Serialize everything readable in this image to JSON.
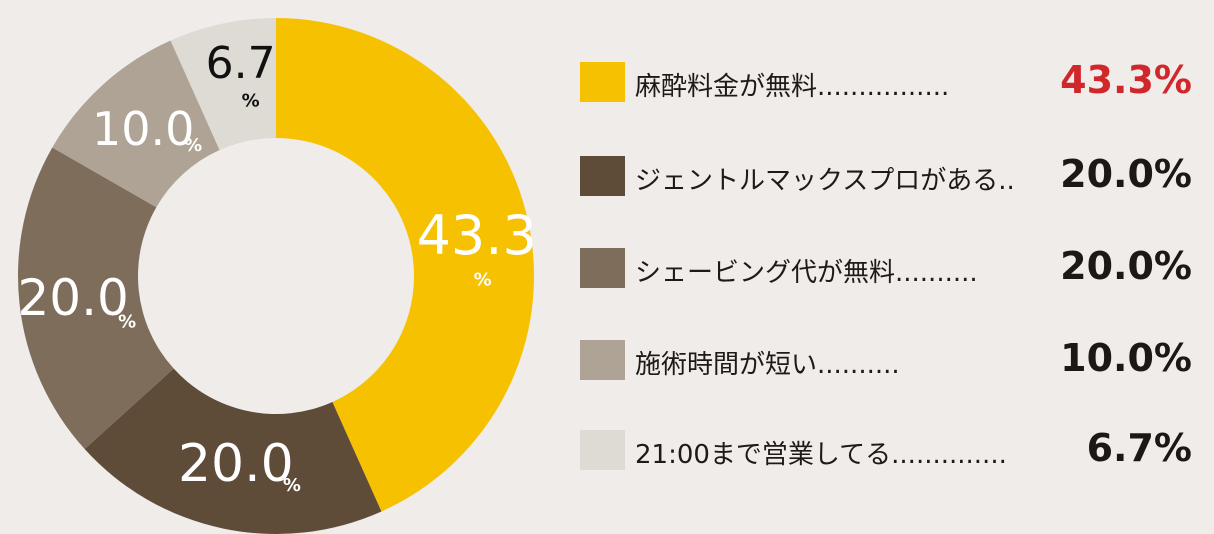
{
  "chart_data": {
    "type": "pie",
    "donut": true,
    "slices": [
      {
        "label": "麻酔料金が無料",
        "value": 43.3,
        "display": "43.3%",
        "slice_text": "43.3",
        "color": "#f5c100",
        "highlight": true,
        "legend_text": "麻酔料金が無料................"
      },
      {
        "label": "ジェントルマックスプロがある",
        "value": 20.0,
        "display": "20.0%",
        "slice_text": "20.0",
        "color": "#5e4b38",
        "legend_text": "ジェントルマックスプロがある.."
      },
      {
        "label": "シェービング代が無料",
        "value": 20.0,
        "display": "20.0%",
        "slice_text": "20.0",
        "color": "#7e6d5b",
        "legend_text": "シェービング代が無料.........."
      },
      {
        "label": "施術時間が短い",
        "value": 10.0,
        "display": "10.0%",
        "slice_text": "10.0",
        "color": "#aea395",
        "legend_text": "施術時間が短い.........."
      },
      {
        "label": "21:00まで営業してる",
        "value": 6.7,
        "display": "6.7%",
        "slice_text": "6.7",
        "color": "#dedbd4",
        "legend_text": "21:00まで営業してる.............."
      }
    ],
    "percent_sign": "%",
    "start_angle_deg": 0,
    "direction": "clockwise",
    "legend_position": "right"
  }
}
